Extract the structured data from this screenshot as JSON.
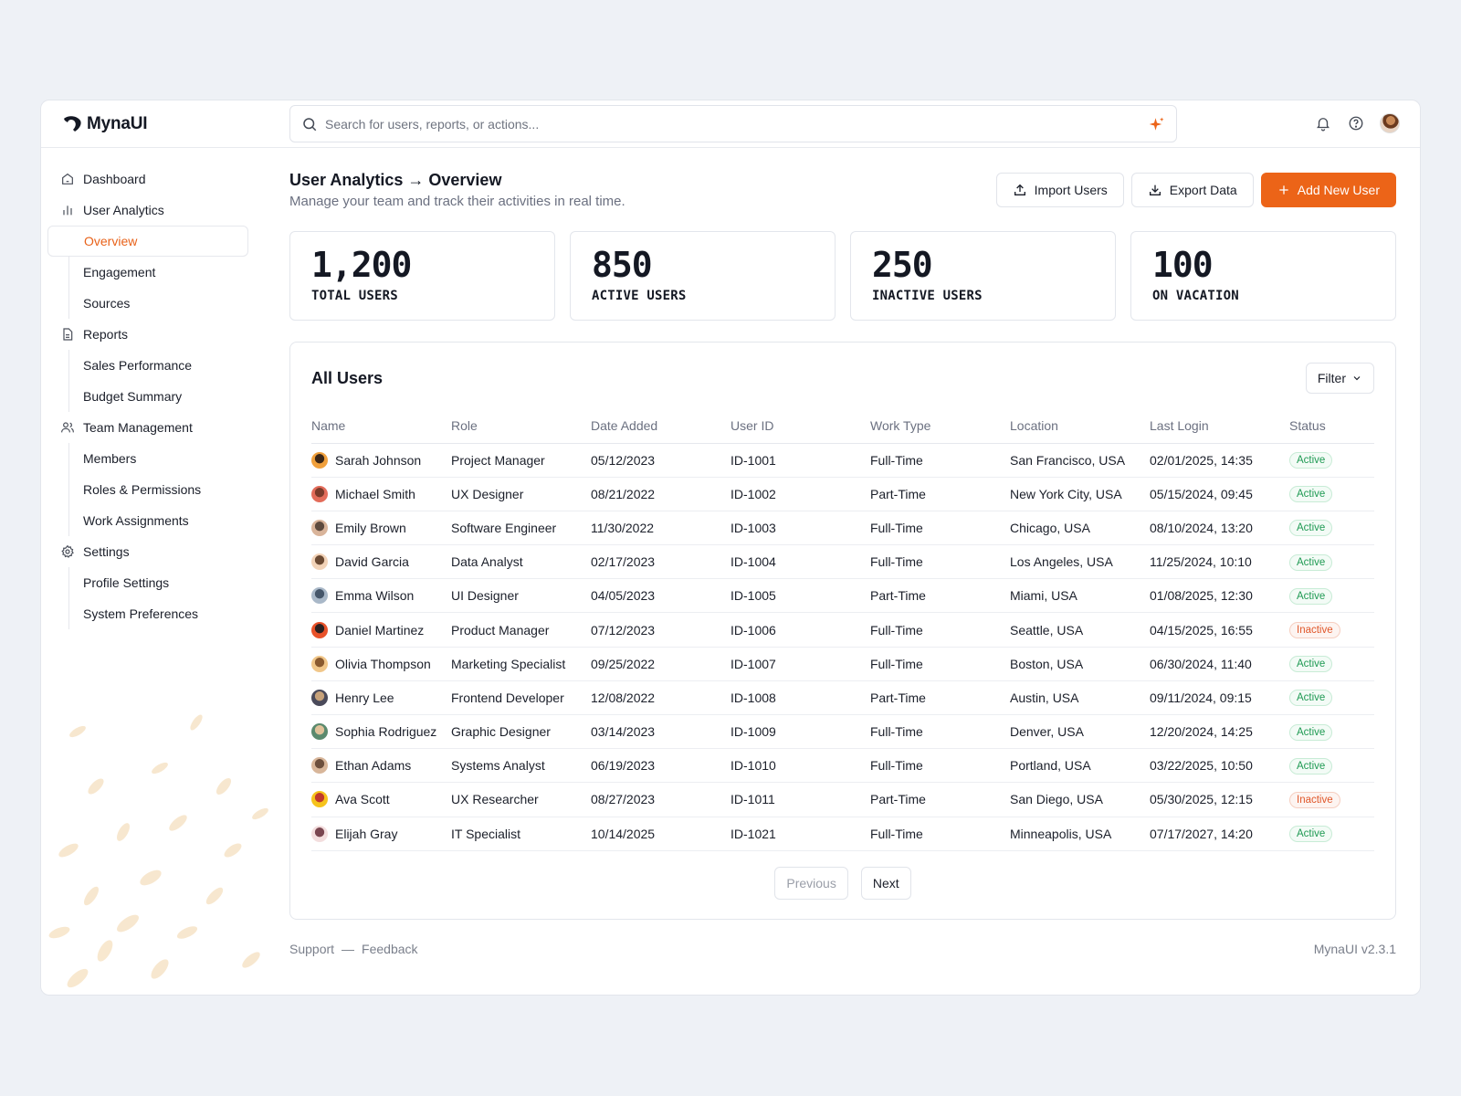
{
  "app": {
    "name": "MynaUI",
    "version": "MynaUI v2.3.1"
  },
  "search": {
    "placeholder": "Search for users, reports, or actions..."
  },
  "sidebar": {
    "items": [
      {
        "label": "Dashboard",
        "icon": "home-icon",
        "level": "top"
      },
      {
        "label": "User Analytics",
        "icon": "bar-chart-icon",
        "level": "top"
      },
      {
        "label": "Overview",
        "level": "sub",
        "active": true
      },
      {
        "label": "Engagement",
        "level": "sub"
      },
      {
        "label": "Sources",
        "level": "sub"
      },
      {
        "label": "Reports",
        "icon": "file-icon",
        "level": "top"
      },
      {
        "label": "Sales Performance",
        "level": "sub"
      },
      {
        "label": "Budget Summary",
        "level": "sub"
      },
      {
        "label": "Team Management",
        "icon": "users-icon",
        "level": "top"
      },
      {
        "label": "Members",
        "level": "sub"
      },
      {
        "label": "Roles & Permissions",
        "level": "sub"
      },
      {
        "label": "Work Assignments",
        "level": "sub"
      },
      {
        "label": "Settings",
        "icon": "gear-icon",
        "level": "top"
      },
      {
        "label": "Profile Settings",
        "level": "sub"
      },
      {
        "label": "System Preferences",
        "level": "sub"
      }
    ]
  },
  "header": {
    "title": "User Analytics → Overview",
    "subtitle": "Manage your team and track their activities in real time.",
    "import_label": "Import Users",
    "export_label": "Export Data",
    "add_label": "Add New User"
  },
  "stats": [
    {
      "value": "1,200",
      "label": "TOTAL USERS"
    },
    {
      "value": "850",
      "label": "ACTIVE USERS"
    },
    {
      "value": "250",
      "label": "INACTIVE USERS"
    },
    {
      "value": "100",
      "label": "ON VACATION"
    }
  ],
  "users": {
    "title": "All Users",
    "filter_label": "Filter",
    "columns": [
      "Name",
      "Role",
      "Date Added",
      "User ID",
      "Work Type",
      "Location",
      "Last Login",
      "Status"
    ],
    "rows": [
      {
        "name": "Sarah Johnson",
        "role": "Project Manager",
        "date": "05/12/2023",
        "id": "ID-1001",
        "type": "Full-Time",
        "location": "San Francisco, USA",
        "login": "02/01/2025, 14:35",
        "status": "Active"
      },
      {
        "name": "Michael Smith",
        "role": "UX Designer",
        "date": "08/21/2022",
        "id": "ID-1002",
        "type": "Part-Time",
        "location": "New York City, USA",
        "login": "05/15/2024, 09:45",
        "status": "Active"
      },
      {
        "name": "Emily Brown",
        "role": "Software Engineer",
        "date": "11/30/2022",
        "id": "ID-1003",
        "type": "Full-Time",
        "location": "Chicago, USA",
        "login": "08/10/2024, 13:20",
        "status": "Active"
      },
      {
        "name": "David Garcia",
        "role": "Data Analyst",
        "date": "02/17/2023",
        "id": "ID-1004",
        "type": "Full-Time",
        "location": "Los Angeles, USA",
        "login": "11/25/2024, 10:10",
        "status": "Active"
      },
      {
        "name": "Emma Wilson",
        "role": "UI Designer",
        "date": "04/05/2023",
        "id": "ID-1005",
        "type": "Part-Time",
        "location": "Miami, USA",
        "login": "01/08/2025, 12:30",
        "status": "Active"
      },
      {
        "name": "Daniel Martinez",
        "role": "Product Manager",
        "date": "07/12/2023",
        "id": "ID-1006",
        "type": "Full-Time",
        "location": "Seattle, USA",
        "login": "04/15/2025, 16:55",
        "status": "Inactive"
      },
      {
        "name": "Olivia Thompson",
        "role": "Marketing Specialist",
        "date": "09/25/2022",
        "id": "ID-1007",
        "type": "Full-Time",
        "location": "Boston, USA",
        "login": "06/30/2024, 11:40",
        "status": "Active"
      },
      {
        "name": "Henry Lee",
        "role": "Frontend Developer",
        "date": "12/08/2022",
        "id": "ID-1008",
        "type": "Part-Time",
        "location": "Austin, USA",
        "login": "09/11/2024, 09:15",
        "status": "Active"
      },
      {
        "name": "Sophia Rodriguez",
        "role": "Graphic Designer",
        "date": "03/14/2023",
        "id": "ID-1009",
        "type": "Full-Time",
        "location": "Denver, USA",
        "login": "12/20/2024, 14:25",
        "status": "Active"
      },
      {
        "name": "Ethan Adams",
        "role": "Systems Analyst",
        "date": "06/19/2023",
        "id": "ID-1010",
        "type": "Full-Time",
        "location": "Portland, USA",
        "login": "03/22/2025, 10:50",
        "status": "Active"
      },
      {
        "name": "Ava Scott",
        "role": "UX Researcher",
        "date": "08/27/2023",
        "id": "ID-1011",
        "type": "Part-Time",
        "location": "San Diego, USA",
        "login": "05/30/2025, 12:15",
        "status": "Inactive"
      },
      {
        "name": "Elijah Gray",
        "role": "IT Specialist",
        "date": "10/14/2025",
        "id": "ID-1021",
        "type": "Full-Time",
        "location": "Minneapolis, USA",
        "login": "07/17/2027, 14:20",
        "status": "Active"
      }
    ]
  },
  "pagination": {
    "previous_label": "Previous",
    "next_label": "Next"
  },
  "footer": {
    "support_label": "Support",
    "separator": "—",
    "feedback_label": "Feedback"
  },
  "colors": {
    "accent": "#ec6418",
    "active": "#1f9a53",
    "inactive": "#e0572a"
  }
}
